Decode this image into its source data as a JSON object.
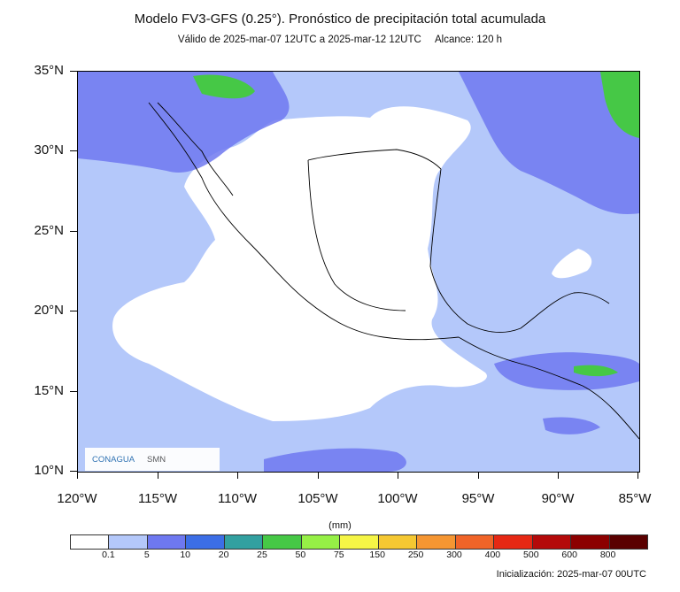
{
  "header": {
    "title": "Modelo FV3-GFS (0.25°). Pronóstico de precipitación total acumulada",
    "valid": "Válido de 2025-mar-07 12UTC a 2025-mar-12 12UTC",
    "range": "Alcance: 120 h"
  },
  "axes": {
    "lat_labels": [
      "35°N",
      "30°N",
      "25°N",
      "20°N",
      "15°N",
      "10°N"
    ],
    "lon_labels": [
      "120°W",
      "115°W",
      "110°W",
      "105°W",
      "100°W",
      "95°W",
      "90°W",
      "85°W"
    ]
  },
  "colorbar": {
    "units": "(mm)",
    "levels": [
      "0.1",
      "5",
      "10",
      "20",
      "25",
      "50",
      "75",
      "150",
      "250",
      "300",
      "400",
      "500",
      "600",
      "800"
    ],
    "colors": [
      "#ffffff",
      "#b4c8fa",
      "#6e78f0",
      "#3c6ee6",
      "#32a0a0",
      "#46c846",
      "#96f046",
      "#f5f546",
      "#f5c832",
      "#f59632",
      "#f06428",
      "#e62814",
      "#b40a0a",
      "#8c0000",
      "#5a0000"
    ]
  },
  "logos": {
    "left": "CONAGUA",
    "right": "SMN"
  },
  "footer": {
    "init": "Inicialización: 2025-mar-07 00UTC"
  }
}
